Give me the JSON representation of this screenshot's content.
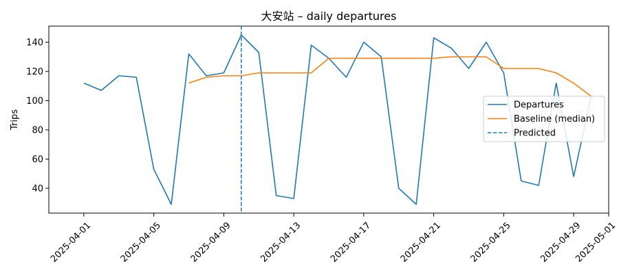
{
  "chart_data": {
    "type": "line",
    "title": "大安站 – daily departures",
    "xlabel": "",
    "ylabel": "Trips",
    "x_axis_type": "date",
    "xlim": [
      "2025-03-30",
      "2025-05-01"
    ],
    "ylim": [
      23,
      151
    ],
    "x_ticks": [
      "2025-04-01",
      "2025-04-05",
      "2025-04-09",
      "2025-04-13",
      "2025-04-17",
      "2025-04-21",
      "2025-04-25",
      "2025-04-29",
      "2025-05-01"
    ],
    "y_ticks": [
      40,
      60,
      80,
      100,
      120,
      140
    ],
    "grid": false,
    "legend_position": "center-right",
    "series": [
      {
        "name": "Departures",
        "color": "#1f77b4",
        "style": "solid",
        "x": [
          "2025-04-01",
          "2025-04-02",
          "2025-04-03",
          "2025-04-04",
          "2025-04-05",
          "2025-04-06",
          "2025-04-07",
          "2025-04-08",
          "2025-04-09",
          "2025-04-10",
          "2025-04-11",
          "2025-04-12",
          "2025-04-13",
          "2025-04-14",
          "2025-04-15",
          "2025-04-16",
          "2025-04-17",
          "2025-04-18",
          "2025-04-19",
          "2025-04-20",
          "2025-04-21",
          "2025-04-22",
          "2025-04-23",
          "2025-04-24",
          "2025-04-25",
          "2025-04-26",
          "2025-04-27",
          "2025-04-28",
          "2025-04-29",
          "2025-04-30"
        ],
        "y": [
          112,
          107,
          117,
          116,
          53,
          29,
          132,
          117,
          119,
          145,
          133,
          35,
          33,
          138,
          129,
          116,
          140,
          130,
          40,
          29,
          143,
          136,
          122,
          140,
          119,
          45,
          42,
          112,
          48,
          103
        ]
      },
      {
        "name": "Baseline (median)",
        "color": "#ff7f0e",
        "style": "solid",
        "x": [
          "2025-04-07",
          "2025-04-08",
          "2025-04-09",
          "2025-04-10",
          "2025-04-11",
          "2025-04-12",
          "2025-04-13",
          "2025-04-14",
          "2025-04-15",
          "2025-04-16",
          "2025-04-17",
          "2025-04-18",
          "2025-04-19",
          "2025-04-20",
          "2025-04-21",
          "2025-04-22",
          "2025-04-23",
          "2025-04-24",
          "2025-04-25",
          "2025-04-26",
          "2025-04-27",
          "2025-04-28",
          "2025-04-29",
          "2025-04-30"
        ],
        "y": [
          112,
          116,
          117,
          117,
          119,
          119,
          119,
          119,
          129,
          129,
          129,
          129,
          129,
          129,
          129,
          130,
          130,
          130,
          122,
          122,
          122,
          119,
          112,
          103
        ]
      }
    ],
    "vertical_line": {
      "name": "Predicted",
      "x": "2025-04-10",
      "color": "#1f77b4",
      "style": "dashed"
    }
  }
}
